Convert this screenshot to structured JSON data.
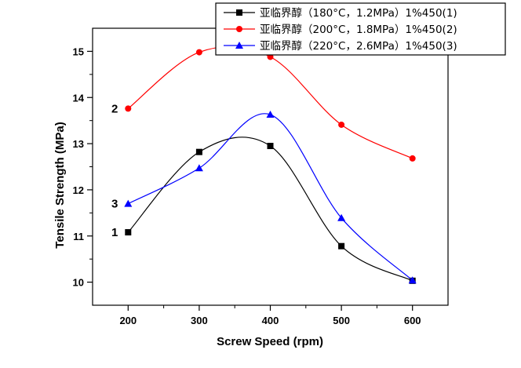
{
  "chart_data": {
    "type": "line",
    "title": "",
    "xlabel": "Screw Speed (rpm)",
    "ylabel": "Tensile Strength (MPa)",
    "x": [
      200,
      300,
      400,
      500,
      600
    ],
    "xlim": [
      150,
      650
    ],
    "ylim": [
      9.5,
      15.5
    ],
    "x_ticks": [
      200,
      300,
      400,
      500,
      600
    ],
    "y_ticks": [
      10,
      11,
      12,
      13,
      14,
      15
    ],
    "grid": false,
    "legend_position": "top-right",
    "series": [
      {
        "name": "亚临界醇（180°C，1.2MPa）1%450(1)",
        "curve_label": "1",
        "color": "#000000",
        "marker": "square",
        "values": [
          11.08,
          12.82,
          12.95,
          10.78,
          10.03
        ]
      },
      {
        "name": "亚临界醇（200°C，1.8MPa）1%450(2)",
        "curve_label": "2",
        "color": "#ff0000",
        "marker": "circle",
        "values": [
          13.76,
          14.98,
          14.88,
          13.41,
          12.68
        ]
      },
      {
        "name": "亚临界醇（220°C，2.6MPa）1%450(3)",
        "curve_label": "3",
        "color": "#0000ff",
        "marker": "triangle",
        "values": [
          11.7,
          12.47,
          13.63,
          11.39,
          10.04
        ]
      }
    ]
  }
}
